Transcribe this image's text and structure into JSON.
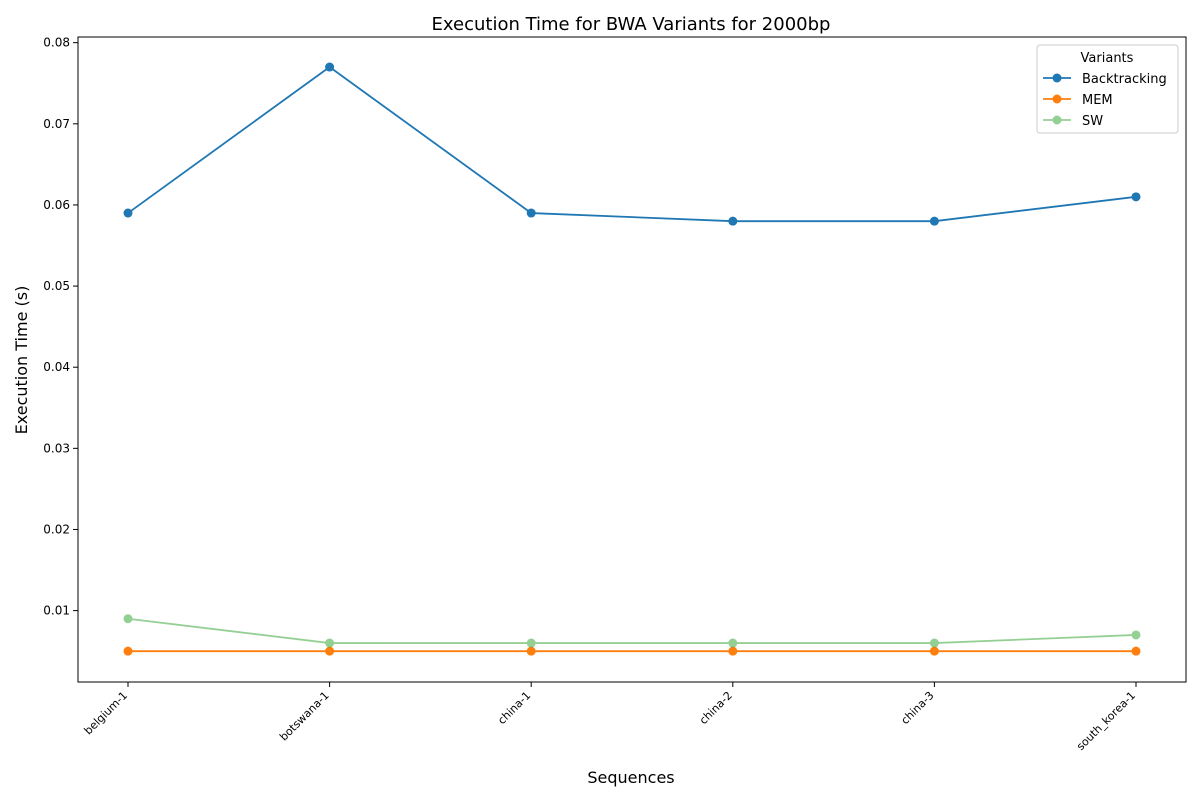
{
  "chart_data": {
    "type": "line",
    "title": "Execution Time for BWA Variants for 2000bp",
    "xlabel": "Sequences",
    "ylabel": "Execution Time (s)",
    "categories": [
      "belgium-1",
      "botswana-1",
      "china-1",
      "china-2",
      "china-3",
      "south_korea-1"
    ],
    "ylim": [
      0.0012,
      0.0807
    ],
    "yticks": [
      "0.01",
      "0.02",
      "0.03",
      "0.04",
      "0.05",
      "0.06",
      "0.07",
      "0.08"
    ],
    "grid": false,
    "legend": {
      "title": "Variants",
      "placement": "top-right"
    },
    "series": [
      {
        "name": "Backtracking",
        "color": "#1f77b4",
        "opacity": 1.0,
        "values": [
          0.059,
          0.077,
          0.059,
          0.058,
          0.058,
          0.061
        ]
      },
      {
        "name": "MEM",
        "color": "#ff7f0e",
        "opacity": 1.0,
        "values": [
          0.005,
          0.005,
          0.005,
          0.005,
          0.005,
          0.005
        ]
      },
      {
        "name": "SW",
        "color": "#2ca02c",
        "opacity": 0.5,
        "values": [
          0.009,
          0.006,
          0.006,
          0.006,
          0.006,
          0.007
        ]
      }
    ]
  }
}
